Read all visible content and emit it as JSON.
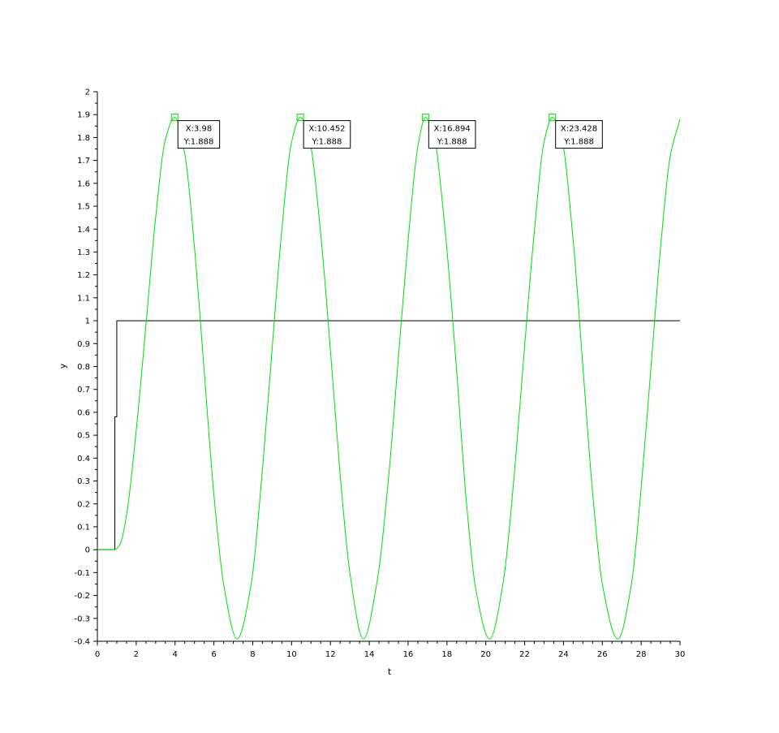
{
  "chart_data": {
    "type": "line",
    "title": "",
    "xlabel": "t",
    "ylabel": "y",
    "xlim": [
      0,
      30
    ],
    "ylim": [
      -0.4,
      2
    ],
    "xticks": [
      "0",
      "2",
      "4",
      "6",
      "8",
      "10",
      "12",
      "14",
      "16",
      "18",
      "20",
      "22",
      "24",
      "26",
      "28",
      "30"
    ],
    "yticks": [
      "-0.4",
      "-0.3",
      "-0.2",
      "-0.1",
      "0",
      "0.1",
      "0.2",
      "0.3",
      "0.4",
      "0.5",
      "0.6",
      "0.7",
      "0.8",
      "0.9",
      "1",
      "1.1",
      "1.2",
      "1.3",
      "1.4",
      "1.5",
      "1.6",
      "1.7",
      "1.8",
      "1.9",
      "2"
    ],
    "grid": false,
    "series": [
      {
        "color": "#000000",
        "x": [
          0,
          0.9,
          0.9,
          1.0,
          1.0,
          30
        ],
        "y": [
          0,
          0,
          0.58,
          0.58,
          1,
          1
        ]
      },
      {
        "color": "#00dd00",
        "x": [
          0,
          0.9,
          1.0,
          1.2,
          1.5,
          2.0,
          2.5,
          3.0,
          3.5,
          3.98,
          4.5,
          5.0,
          5.5,
          6.0,
          6.5,
          7.2,
          7.9,
          8.5,
          9.0,
          9.5,
          10.0,
          10.452,
          10.9,
          11.5,
          12.0,
          12.5,
          13.0,
          13.7,
          14.4,
          15.0,
          15.5,
          16.0,
          16.5,
          16.894,
          17.3,
          17.9,
          18.5,
          19.0,
          19.5,
          20.2,
          20.9,
          21.5,
          22.0,
          22.5,
          23.0,
          23.428,
          23.9,
          24.5,
          25.0,
          25.5,
          26.0,
          26.8,
          27.5,
          28.0,
          28.5,
          29.0,
          29.5,
          30.0
        ],
        "y": [
          0,
          0,
          0.005,
          0.03,
          0.15,
          0.52,
          0.98,
          1.45,
          1.79,
          1.888,
          1.73,
          1.32,
          0.78,
          0.24,
          -0.15,
          -0.39,
          -0.16,
          0.35,
          0.88,
          1.4,
          1.78,
          1.888,
          1.8,
          1.38,
          0.87,
          0.33,
          -0.1,
          -0.39,
          -0.14,
          0.32,
          0.84,
          1.35,
          1.76,
          1.888,
          1.82,
          1.4,
          0.78,
          0.21,
          -0.18,
          -0.39,
          -0.14,
          0.36,
          0.89,
          1.39,
          1.78,
          1.888,
          1.8,
          1.35,
          0.8,
          0.25,
          -0.15,
          -0.39,
          -0.15,
          0.27,
          0.79,
          1.32,
          1.72,
          1.88
        ]
      }
    ],
    "datatips": [
      {
        "x": 3.98,
        "y": 1.888,
        "xtext": "X:3.98",
        "ytext": "Y:1.888"
      },
      {
        "x": 10.452,
        "y": 1.888,
        "xtext": "X:10.452",
        "ytext": "Y:1.888"
      },
      {
        "x": 16.894,
        "y": 1.888,
        "xtext": "X:16.894",
        "ytext": "Y:1.888"
      },
      {
        "x": 23.428,
        "y": 1.888,
        "xtext": "X:23.428",
        "ytext": "Y:1.888"
      }
    ]
  }
}
